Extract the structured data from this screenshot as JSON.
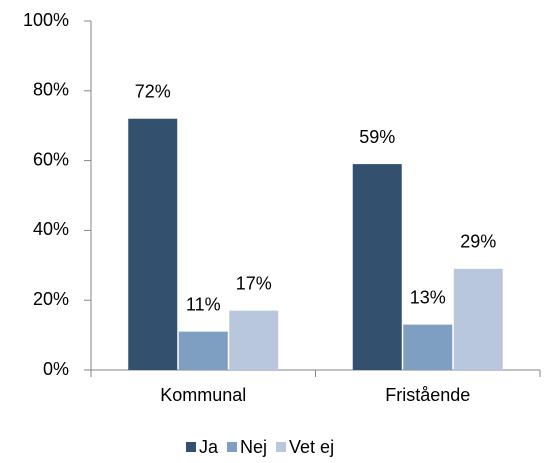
{
  "chart_data": {
    "type": "bar",
    "categories": [
      "Kommunal",
      "Fristående"
    ],
    "series": [
      {
        "name": "Ja",
        "color": "#34506f",
        "values": [
          72,
          59
        ],
        "value_labels": [
          "72%",
          "59%"
        ]
      },
      {
        "name": "Nej",
        "color": "#7f9fc2",
        "values": [
          11,
          13
        ],
        "value_labels": [
          "11%",
          "13%"
        ]
      },
      {
        "name": "Vet ej",
        "color": "#b9c7dd",
        "values": [
          17,
          29
        ],
        "value_labels": [
          "17%",
          "29%"
        ]
      }
    ],
    "ylim": [
      0,
      100
    ],
    "yticks": [
      {
        "value": 0,
        "label": "0%"
      },
      {
        "value": 20,
        "label": "20%"
      },
      {
        "value": 40,
        "label": "40%"
      },
      {
        "value": 60,
        "label": "60%"
      },
      {
        "value": 80,
        "label": "80%"
      },
      {
        "value": 100,
        "label": "100%"
      }
    ],
    "legend": "bottom"
  }
}
